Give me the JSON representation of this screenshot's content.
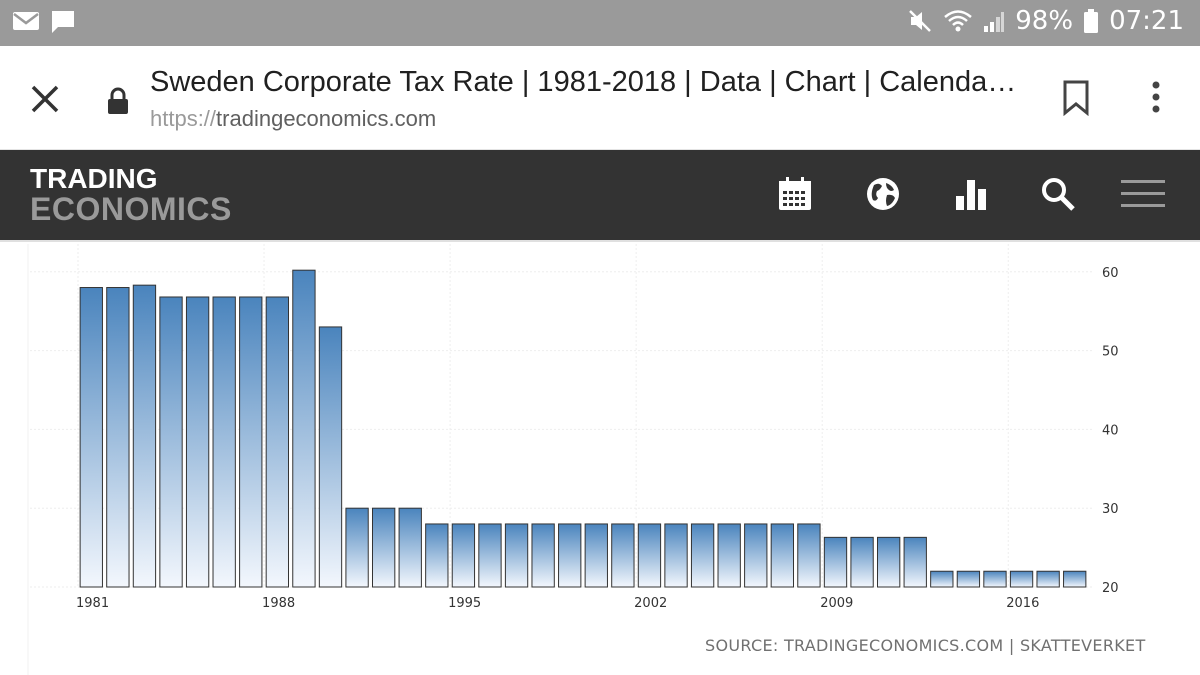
{
  "status_bar": {
    "battery": "98%",
    "time": "07:21",
    "icons": [
      "mail-icon",
      "message-icon",
      "mute-icon",
      "wifi-icon",
      "signal-icon",
      "battery-icon"
    ]
  },
  "browser": {
    "page_title": "Sweden Corporate Tax Rate | 1981-2018 | Data | Chart | Calenda…",
    "url_protocol": "https://",
    "url_host": "tradingeconomics.com"
  },
  "site_header": {
    "logo_line1": "TRADING",
    "logo_line2": "ECONOMICS",
    "nav_icons": [
      "calendar-icon",
      "globe-icon",
      "bar-chart-icon",
      "search-icon",
      "menu-icon"
    ]
  },
  "source": "SOURCE: TRADINGECONOMICS.COM | SKATTEVERKET",
  "colors": {
    "bar_top": "#4a84bd",
    "bar_bottom": "#f3f7fd",
    "header_bg": "#333333",
    "status_bg": "#9a9a9a"
  },
  "chart_data": {
    "type": "bar",
    "title": "",
    "xlabel": "",
    "ylabel": "",
    "ylim": [
      20,
      62
    ],
    "yticks": [
      20,
      30,
      40,
      50,
      60
    ],
    "xticks": [
      "1981",
      "1988",
      "1995",
      "2002",
      "2009",
      "2016"
    ],
    "y_axis_side": "right",
    "grid": true,
    "categories": [
      "1981",
      "1982",
      "1983",
      "1984",
      "1985",
      "1986",
      "1987",
      "1988",
      "1989",
      "1990",
      "1991",
      "1992",
      "1993",
      "1994",
      "1995",
      "1996",
      "1997",
      "1998",
      "1999",
      "2000",
      "2001",
      "2002",
      "2003",
      "2004",
      "2005",
      "2006",
      "2007",
      "2008",
      "2009",
      "2010",
      "2011",
      "2012",
      "2013",
      "2014",
      "2015",
      "2016",
      "2017",
      "2018"
    ],
    "values": [
      58,
      58,
      58.3,
      56.8,
      56.8,
      56.8,
      56.8,
      56.8,
      60.2,
      53,
      30,
      30,
      30,
      28,
      28,
      28,
      28,
      28,
      28,
      28,
      28,
      28,
      28,
      28,
      28,
      28,
      28,
      28,
      26.3,
      26.3,
      26.3,
      26.3,
      22,
      22,
      22,
      22,
      22,
      22
    ]
  }
}
